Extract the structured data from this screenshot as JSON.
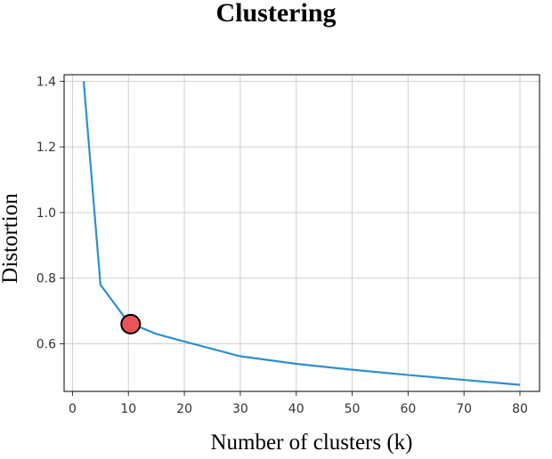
{
  "chart_data": {
    "type": "line",
    "title": "Clustering",
    "xlabel": "Number of clusters (k)",
    "ylabel": "Distortion",
    "xlim": [
      -1.5,
      83.5
    ],
    "ylim": [
      0.455,
      1.42
    ],
    "x_ticks": [
      0,
      10,
      20,
      30,
      40,
      50,
      60,
      70,
      80
    ],
    "y_ticks": [
      0.6,
      0.8,
      1.0,
      1.2,
      1.4
    ],
    "grid": true,
    "series": [
      {
        "color": "#2e8fce",
        "x": [
          2,
          5,
          10,
          15,
          20,
          30,
          40,
          50,
          60,
          70,
          80
        ],
        "y": [
          1.4,
          0.78,
          0.665,
          0.63,
          0.607,
          0.562,
          0.539,
          0.521,
          0.505,
          0.49,
          0.475
        ]
      }
    ],
    "highlight_point": {
      "x": 10.4,
      "y": 0.66,
      "color": "#e8545a"
    }
  }
}
